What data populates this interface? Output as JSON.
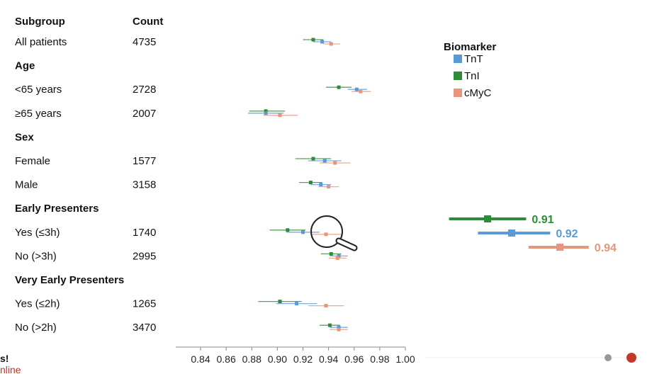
{
  "headers": {
    "subgroup": "Subgroup",
    "count": "Count"
  },
  "colors": {
    "TnT": "#5b9bd5",
    "TnI": "#2e8b3a",
    "cMyC": "#e8967a"
  },
  "chart_data": {
    "type": "forest",
    "xlim": [
      0.82,
      1.0
    ],
    "xticks": [
      "0.84",
      "0.86",
      "0.88",
      "0.90",
      "0.92",
      "0.94",
      "0.96",
      "0.98",
      "1.00"
    ],
    "xtick_values": [
      0.84,
      0.86,
      0.88,
      0.9,
      0.92,
      0.94,
      0.96,
      0.98,
      1.0
    ],
    "legend": {
      "title": "Biomarker",
      "items": [
        "TnT",
        "TnI",
        "cMyC"
      ]
    },
    "rows": [
      {
        "kind": "data",
        "label": "All patients",
        "count": "4735",
        "TnI": [
          0.928,
          0.92,
          0.936
        ],
        "TnT": [
          0.935,
          0.928,
          0.942
        ],
        "cMyC": [
          0.942,
          0.936,
          0.949
        ]
      },
      {
        "kind": "header",
        "label": "Age"
      },
      {
        "kind": "data",
        "label": "<65 years",
        "count": "2728",
        "TnI": [
          0.948,
          0.938,
          0.958
        ],
        "TnT": [
          0.962,
          0.955,
          0.97
        ],
        "cMyC": [
          0.965,
          0.958,
          0.973
        ]
      },
      {
        "kind": "data",
        "label": "≥65 years",
        "count": "2007",
        "TnI": [
          0.891,
          0.878,
          0.906
        ],
        "TnT": [
          0.891,
          0.877,
          0.905
        ],
        "cMyC": [
          0.902,
          0.889,
          0.916
        ]
      },
      {
        "kind": "header",
        "label": "Sex"
      },
      {
        "kind": "data",
        "label": "Female",
        "count": "1577",
        "TnI": [
          0.928,
          0.914,
          0.942
        ],
        "TnT": [
          0.937,
          0.924,
          0.95
        ],
        "cMyC": [
          0.945,
          0.933,
          0.957
        ]
      },
      {
        "kind": "data",
        "label": "Male",
        "count": "3158",
        "TnI": [
          0.926,
          0.917,
          0.935
        ],
        "TnT": [
          0.934,
          0.926,
          0.942
        ],
        "cMyC": [
          0.94,
          0.932,
          0.948
        ]
      },
      {
        "kind": "header",
        "label": "Early Presenters"
      },
      {
        "kind": "data",
        "label": "Yes (≤3h)",
        "count": "1740",
        "TnI": [
          0.908,
          0.894,
          0.922
        ],
        "TnT": [
          0.92,
          0.907,
          0.933
        ],
        "cMyC": [
          0.938,
          0.926,
          0.95
        ]
      },
      {
        "kind": "data",
        "label": "No (>3h)",
        "count": "2995",
        "TnI": [
          0.942,
          0.934,
          0.95
        ],
        "TnT": [
          0.948,
          0.941,
          0.955
        ],
        "cMyC": [
          0.947,
          0.94,
          0.954
        ]
      },
      {
        "kind": "header",
        "label": "Very Early Presenters"
      },
      {
        "kind": "data",
        "label": "Yes (≤2h)",
        "count": "1265",
        "TnI": [
          0.902,
          0.885,
          0.919
        ],
        "TnT": [
          0.915,
          0.899,
          0.931
        ],
        "cMyC": [
          0.938,
          0.924,
          0.952
        ]
      },
      {
        "kind": "data",
        "label": "No (>2h)",
        "count": "3470",
        "TnI": [
          0.941,
          0.933,
          0.949
        ],
        "TnT": [
          0.948,
          0.941,
          0.955
        ],
        "cMyC": [
          0.948,
          0.941,
          0.955
        ]
      }
    ],
    "zoom_panel": [
      {
        "series": "TnI",
        "value": 0.91,
        "label": "0.91"
      },
      {
        "series": "TnT",
        "value": 0.92,
        "label": "0.92"
      },
      {
        "series": "cMyC",
        "value": 0.94,
        "label": "0.94"
      }
    ]
  },
  "footer_fragments": {
    "line1": "s!",
    "line2": "nline"
  }
}
